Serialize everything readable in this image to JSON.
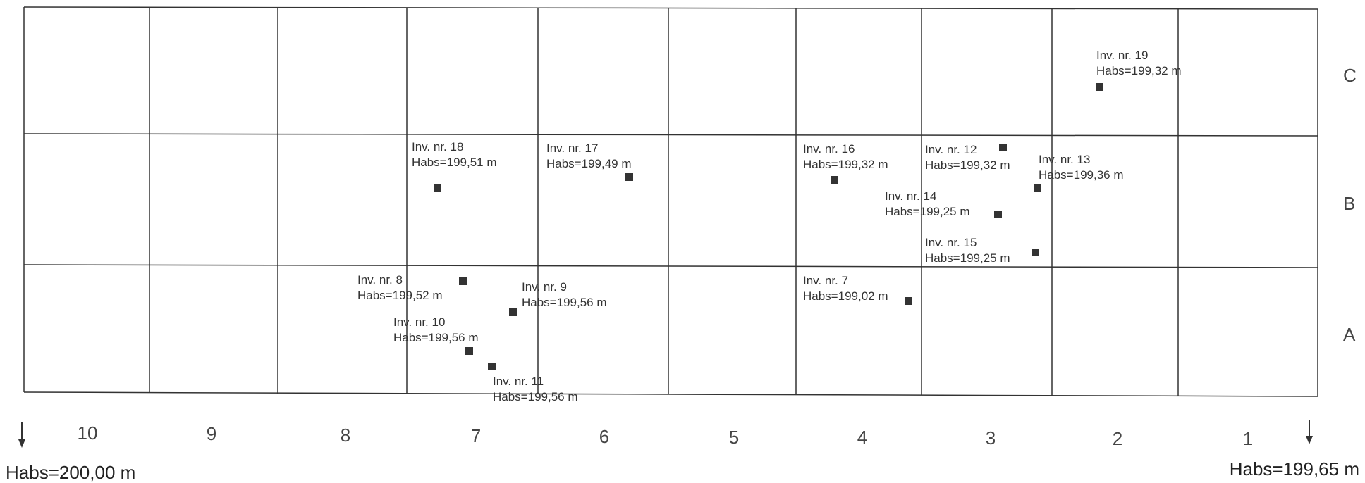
{
  "rows": [
    "C",
    "B",
    "A"
  ],
  "columns": [
    "10",
    "9",
    "8",
    "7",
    "6",
    "5",
    "4",
    "3",
    "2",
    "1"
  ],
  "left_reference": {
    "label": "Habs=200,00 m",
    "arrow": "down-arrow"
  },
  "right_reference": {
    "label": "Habs=199,65 m",
    "arrow": "down-arrow"
  },
  "finds": [
    {
      "id": "19",
      "inv": "Inv. nr. 19",
      "habs": "Habs=199,32 m",
      "cell": "C2"
    },
    {
      "id": "18",
      "inv": "Inv. nr. 18",
      "habs": "Habs=199,51 m",
      "cell": "B7"
    },
    {
      "id": "17",
      "inv": "Inv. nr. 17",
      "habs": "Habs=199,49 m",
      "cell": "B6"
    },
    {
      "id": "16",
      "inv": "Inv. nr. 16",
      "habs": "Habs=199,32 m",
      "cell": "B4"
    },
    {
      "id": "12",
      "inv": "Inv. nr. 12",
      "habs": "Habs=199,32 m",
      "cell": "B3"
    },
    {
      "id": "13",
      "inv": "Inv. nr. 13",
      "habs": "Habs=199,36 m",
      "cell": "B3"
    },
    {
      "id": "14",
      "inv": "Inv. nr. 14",
      "habs": "Habs=199,25 m",
      "cell": "B3"
    },
    {
      "id": "15",
      "inv": "Inv. nr. 15",
      "habs": "Habs=199,25 m",
      "cell": "B3"
    },
    {
      "id": "8",
      "inv": "Inv. nr. 8",
      "habs": "Habs=199,52 m",
      "cell": "A7"
    },
    {
      "id": "9",
      "inv": "Inv. nr. 9",
      "habs": "Habs=199,56 m",
      "cell": "A7"
    },
    {
      "id": "10",
      "inv": "Inv. nr. 10",
      "habs": "Habs=199,56 m",
      "cell": "A7"
    },
    {
      "id": "11",
      "inv": "Inv. nr. 11",
      "habs": "Habs=199,56 m",
      "cell": "A7"
    },
    {
      "id": "7",
      "inv": "Inv. nr. 7",
      "habs": "Habs=199,02 m",
      "cell": "A4"
    }
  ]
}
